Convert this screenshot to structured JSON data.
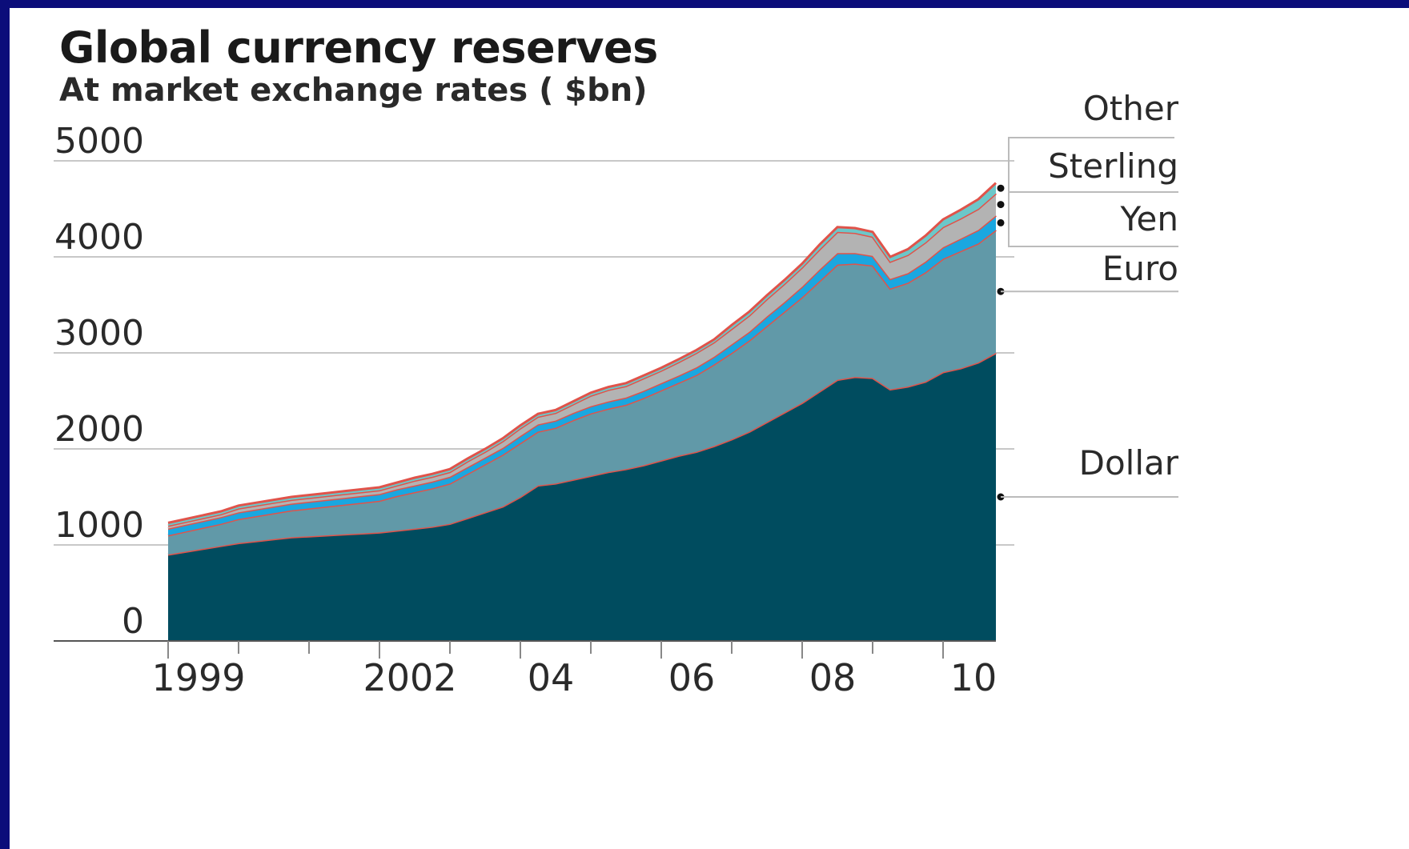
{
  "chart_data": {
    "type": "area",
    "stacked": true,
    "title": "Global currency reserves",
    "subtitle": "At market exchange rates ( $bn)",
    "xlabel": "",
    "ylabel": "",
    "ylim": [
      0,
      5000
    ],
    "xlim": [
      1999.0,
      2010.75
    ],
    "grid": true,
    "legend": "right, direct labels",
    "y_ticks": [
      0,
      1000,
      2000,
      3000,
      4000,
      5000
    ],
    "y_tick_labels": [
      "0",
      "1000",
      "2000",
      "3000",
      "4000",
      "5000"
    ],
    "x_ticks": [
      1999,
      2002,
      2004,
      2006,
      2008,
      2010
    ],
    "x_tick_labels": [
      "1999",
      "2002",
      "04",
      "06",
      "08",
      "10"
    ],
    "x": [
      1999.0,
      1999.25,
      1999.5,
      1999.75,
      2000.0,
      2000.25,
      2000.5,
      2000.75,
      2001.0,
      2001.25,
      2001.5,
      2001.75,
      2002.0,
      2002.25,
      2002.5,
      2002.75,
      2003.0,
      2003.25,
      2003.5,
      2003.75,
      2004.0,
      2004.25,
      2004.5,
      2004.75,
      2005.0,
      2005.25,
      2005.5,
      2005.75,
      2006.0,
      2006.25,
      2006.5,
      2006.75,
      2007.0,
      2007.25,
      2007.5,
      2007.75,
      2008.0,
      2008.25,
      2008.5,
      2008.75,
      2009.0,
      2009.25,
      2009.5,
      2009.75,
      2010.0,
      2010.25,
      2010.5,
      2010.75
    ],
    "series": [
      {
        "name": "Dollar",
        "color": "#004c5f",
        "values": [
          900,
          930,
          960,
          990,
          1020,
          1040,
          1060,
          1080,
          1090,
          1100,
          1110,
          1120,
          1130,
          1150,
          1170,
          1190,
          1220,
          1280,
          1340,
          1400,
          1500,
          1620,
          1640,
          1680,
          1720,
          1760,
          1790,
          1830,
          1880,
          1930,
          1970,
          2030,
          2100,
          2180,
          2280,
          2380,
          2480,
          2600,
          2720,
          2750,
          2740,
          2620,
          2650,
          2700,
          2800,
          2840,
          2900,
          3000
        ]
      },
      {
        "name": "Euro",
        "color": "#6199a8",
        "values": [
          200,
          210,
          220,
          230,
          250,
          260,
          270,
          280,
          290,
          300,
          310,
          320,
          330,
          360,
          380,
          400,
          420,
          460,
          500,
          540,
          560,
          560,
          580,
          620,
          650,
          660,
          670,
          700,
          730,
          760,
          800,
          850,
          900,
          950,
          1000,
          1050,
          1100,
          1150,
          1200,
          1180,
          1170,
          1050,
          1080,
          1140,
          1180,
          1220,
          1240,
          1280
        ]
      },
      {
        "name": "Yen",
        "color": "#1aa7e0",
        "values": [
          70,
          70,
          70,
          70,
          70,
          70,
          70,
          70,
          70,
          70,
          70,
          70,
          70,
          70,
          70,
          70,
          70,
          70,
          70,
          70,
          75,
          75,
          75,
          75,
          75,
          75,
          75,
          75,
          75,
          75,
          80,
          80,
          90,
          90,
          100,
          100,
          110,
          120,
          120,
          110,
          100,
          100,
          100,
          110,
          120,
          130,
          140,
          150
        ]
      },
      {
        "name": "Sterling",
        "color": "#b3b3b3",
        "values": [
          30,
          30,
          30,
          30,
          40,
          40,
          40,
          40,
          40,
          40,
          40,
          40,
          40,
          40,
          50,
          50,
          50,
          60,
          60,
          70,
          80,
          80,
          80,
          90,
          110,
          120,
          120,
          130,
          130,
          140,
          150,
          150,
          160,
          170,
          180,
          190,
          200,
          210,
          220,
          210,
          200,
          180,
          190,
          200,
          210,
          210,
          220,
          230
        ]
      },
      {
        "name": "Other",
        "color": "#6cc7c9",
        "values": [
          30,
          30,
          30,
          30,
          30,
          30,
          30,
          30,
          30,
          30,
          30,
          30,
          30,
          30,
          30,
          30,
          30,
          30,
          30,
          30,
          30,
          30,
          30,
          30,
          30,
          30,
          30,
          30,
          30,
          30,
          30,
          30,
          40,
          40,
          40,
          40,
          40,
          50,
          50,
          50,
          50,
          50,
          60,
          70,
          80,
          90,
          100,
          110
        ]
      }
    ]
  }
}
